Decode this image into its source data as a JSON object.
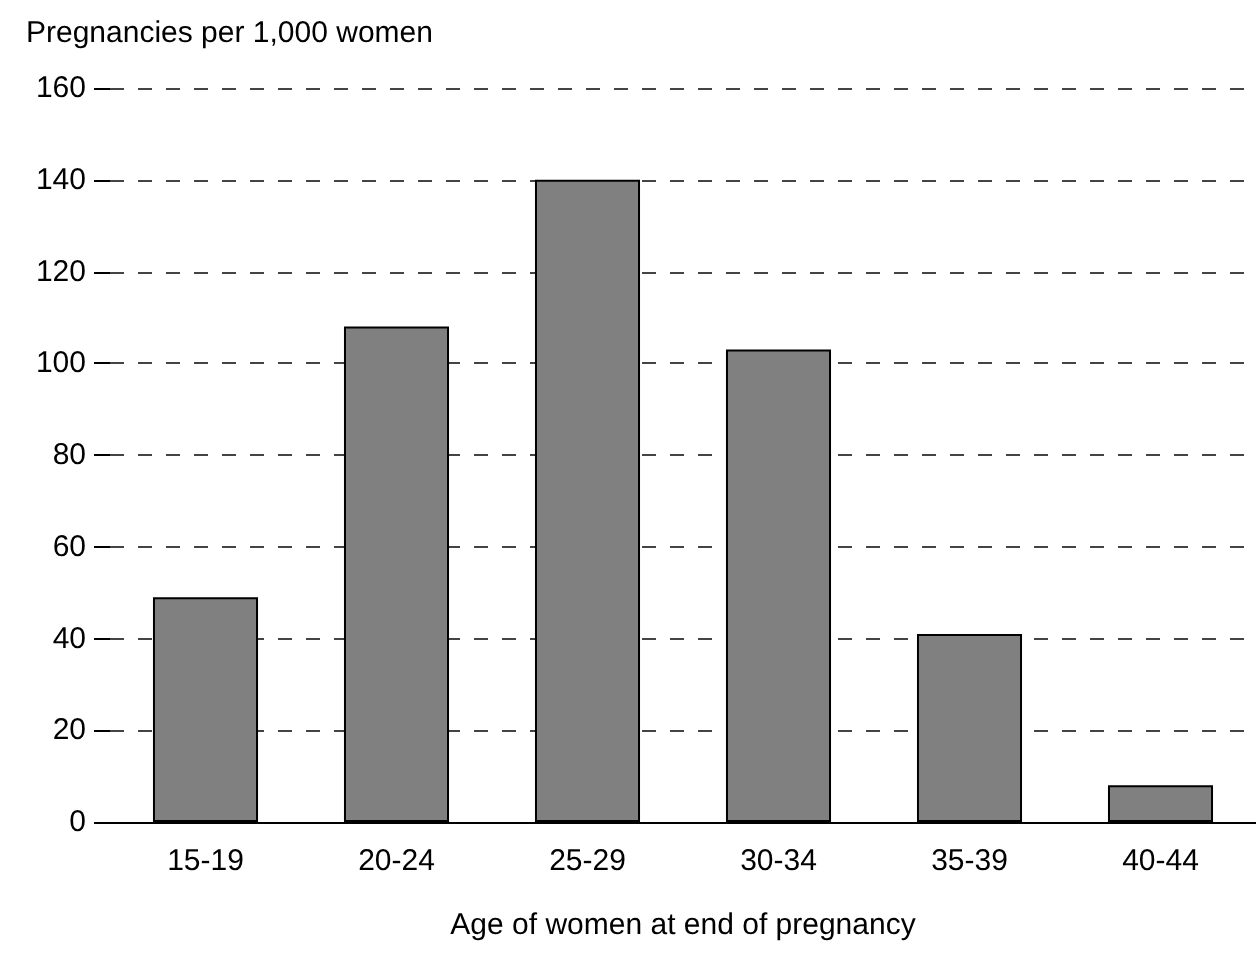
{
  "chart_data": {
    "type": "bar",
    "ylabel": "Pregnancies per 1,000 women",
    "xlabel": "Age of women at end of pregnancy",
    "categories": [
      "15-19",
      "20-24",
      "25-29",
      "30-34",
      "35-39",
      "40-44"
    ],
    "values": [
      49,
      108,
      140,
      103,
      41,
      8
    ],
    "color": "#808080",
    "ylim": [
      0,
      160
    ],
    "yticks": [
      0,
      20,
      40,
      60,
      80,
      100,
      120,
      140,
      160
    ],
    "grid": "y"
  }
}
